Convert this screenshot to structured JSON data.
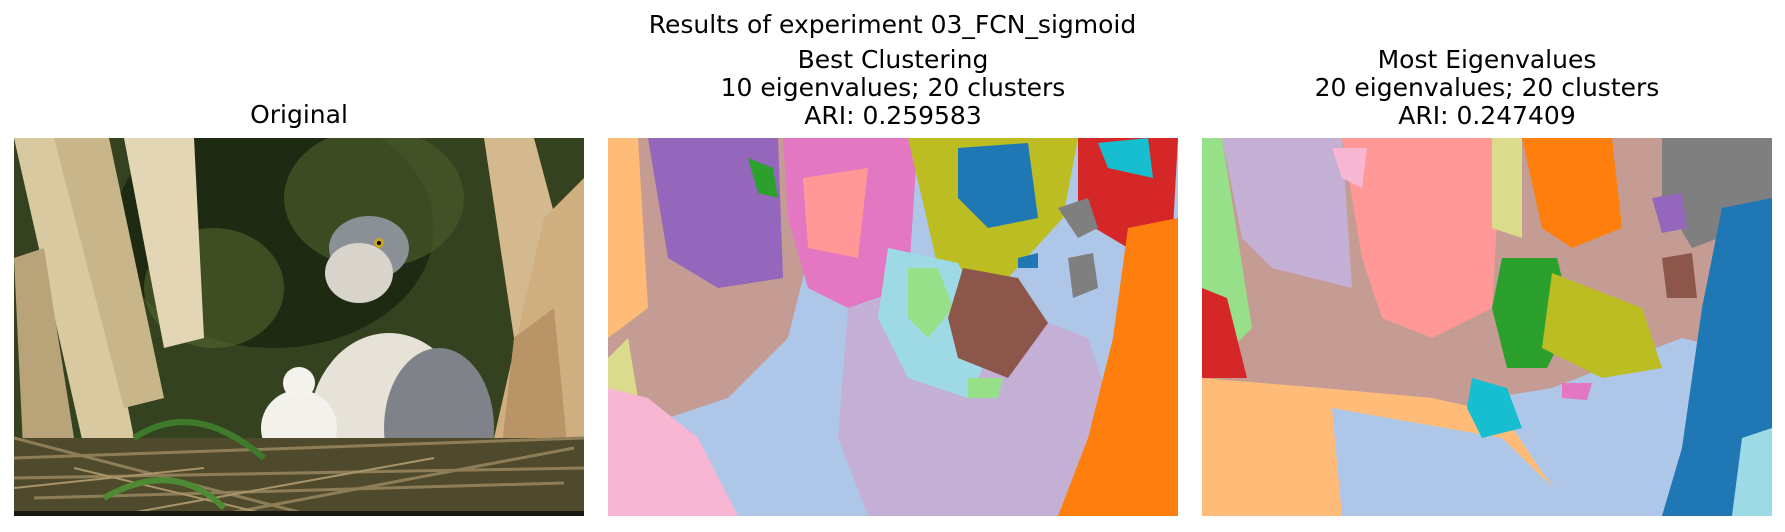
{
  "suptitle": "Results of experiment 03_FCN_sigmoid",
  "panels": {
    "original": {
      "title": "Original"
    },
    "best": {
      "title_line1": "Best Clustering",
      "title_line2": "10 eigenvalues; 20 clusters",
      "title_line3": "ARI: 0.259583"
    },
    "most": {
      "title_line1": "Most Eigenvalues",
      "title_line2": "20 eigenvalues; 20 clusters",
      "title_line3": "ARI: 0.247409"
    }
  },
  "palette": {
    "tab_blue": "#1f77b4",
    "tab_lightblue": "#aec7e8",
    "tab_orange": "#ff7f0e",
    "tab_lightorange": "#ffbb78",
    "tab_green": "#2ca02c",
    "tab_lightgreen": "#98df8a",
    "tab_red": "#d62728",
    "tab_pink_red": "#ff9896",
    "tab_purple": "#9467bd",
    "tab_lavender": "#c5b0d5",
    "tab_brown": "#8c564b",
    "tab_tan": "#c49c94",
    "tab_pink": "#e377c2",
    "tab_lightpink": "#f7b6d2",
    "tab_gray": "#7f7f7f",
    "tab_lightgray": "#c7c7c7",
    "tab_olive": "#bcbd22",
    "tab_khaki": "#dbdb8d",
    "tab_cyan": "#17becf",
    "tab_lightcyan": "#9edae5"
  }
}
